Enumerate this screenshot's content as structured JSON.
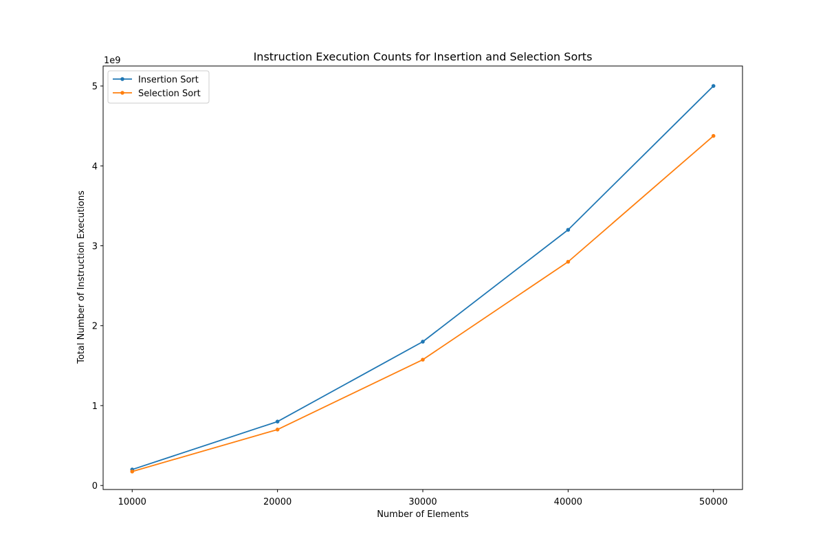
{
  "chart_data": {
    "type": "line",
    "title": "Instruction Execution Counts for Insertion and Selection Sorts",
    "xlabel": "Number of Elements",
    "ylabel": "Total Number of Instruction Executions",
    "y_offset_label": "1e9",
    "x": [
      10000,
      20000,
      30000,
      40000,
      50000
    ],
    "x_ticks": [
      10000,
      20000,
      30000,
      40000,
      50000
    ],
    "x_tick_labels": [
      "10000",
      "20000",
      "30000",
      "40000",
      "50000"
    ],
    "y_ticks": [
      0,
      1000000000,
      2000000000,
      3000000000,
      4000000000,
      5000000000
    ],
    "y_tick_labels": [
      "0",
      "1",
      "2",
      "3",
      "4",
      "5"
    ],
    "xlim": [
      8000,
      52000
    ],
    "ylim": [
      -50000000,
      5250000000
    ],
    "grid": false,
    "legend_position": "upper-left",
    "series": [
      {
        "name": "Insertion Sort",
        "color": "#1f77b4",
        "marker": "circle",
        "values": [
          200000000,
          800000000,
          1800000000,
          3200000000,
          5000000000
        ]
      },
      {
        "name": "Selection Sort",
        "color": "#ff7f0e",
        "marker": "circle",
        "values": [
          175000000,
          700000000,
          1575000000,
          2800000000,
          4375000000
        ]
      }
    ]
  }
}
